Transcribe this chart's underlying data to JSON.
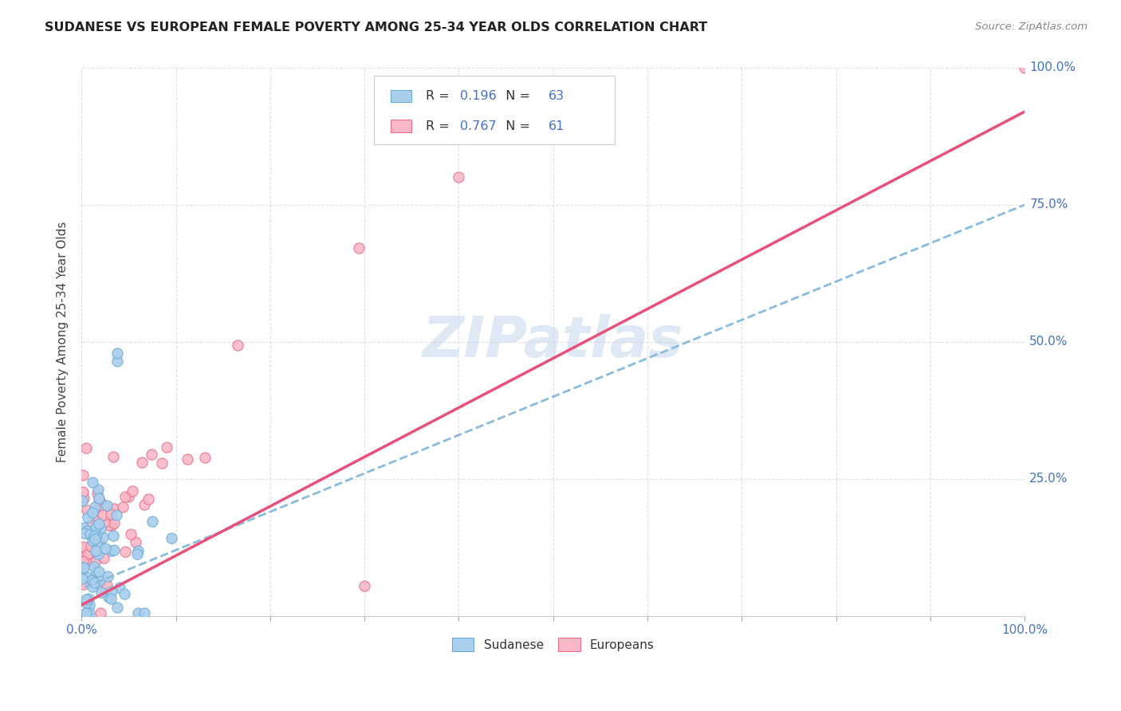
{
  "title": "SUDANESE VS EUROPEAN FEMALE POVERTY AMONG 25-34 YEAR OLDS CORRELATION CHART",
  "source": "Source: ZipAtlas.com",
  "ylabel": "Female Poverty Among 25-34 Year Olds",
  "xlim": [
    0,
    1.0
  ],
  "ylim": [
    0,
    1.0
  ],
  "background_color": "#ffffff",
  "grid_color": "#e0e0e0",
  "watermark": "ZIPatlas",
  "sudanese_color": "#aacfee",
  "europeans_color": "#f9b8c8",
  "sudanese_edge_color": "#6aadd5",
  "europeans_edge_color": "#e8708a",
  "trend_blue_color": "#88bbdd",
  "trend_pink_color": "#e8507a",
  "legend_r_blue": "0.196",
  "legend_n_blue": "63",
  "legend_r_pink": "0.767",
  "legend_n_pink": "61",
  "tick_color": "#4472c4",
  "label_color": "#444444"
}
